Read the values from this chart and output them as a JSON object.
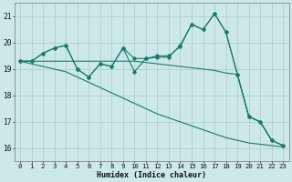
{
  "x": [
    0,
    1,
    2,
    3,
    4,
    5,
    6,
    7,
    8,
    9,
    10,
    11,
    12,
    13,
    14,
    15,
    16,
    17,
    18,
    19,
    20,
    21,
    22,
    23
  ],
  "line_main": [
    19.3,
    19.3,
    19.6,
    19.8,
    19.9,
    19.0,
    18.7,
    19.2,
    19.1,
    19.8,
    19.4,
    19.4,
    19.5,
    19.5,
    19.85,
    20.7,
    20.5,
    21.1,
    20.4,
    18.8,
    17.2,
    17.0,
    16.3,
    16.1
  ],
  "line_main2": [
    19.3,
    19.3,
    19.6,
    19.8,
    19.9,
    19.0,
    18.7,
    19.2,
    19.1,
    19.8,
    18.9,
    19.4,
    19.45,
    19.45,
    19.9,
    20.7,
    20.5,
    21.1,
    20.4,
    18.8,
    17.2,
    17.0,
    16.3,
    16.1
  ],
  "line_flat": [
    19.3,
    19.3,
    19.3,
    19.3,
    19.3,
    19.3,
    19.3,
    19.3,
    19.3,
    19.3,
    19.3,
    19.25,
    19.2,
    19.15,
    19.1,
    19.05,
    19.0,
    18.95,
    18.85,
    18.8,
    17.2,
    17.0,
    16.3,
    16.1
  ],
  "line_steep": [
    19.3,
    19.2,
    19.1,
    19.0,
    18.9,
    18.7,
    18.5,
    18.3,
    18.1,
    17.9,
    17.7,
    17.5,
    17.3,
    17.15,
    17.0,
    16.85,
    16.7,
    16.55,
    16.4,
    16.3,
    16.2,
    16.15,
    16.1,
    16.05
  ],
  "color": "#1a7a6e",
  "bg_color": "#cce8e8",
  "grid_color": "#aacccc",
  "xlabel": "Humidex (Indice chaleur)",
  "ylim": [
    15.5,
    21.5
  ],
  "xlim": [
    -0.5,
    23.5
  ],
  "yticks": [
    16,
    17,
    18,
    19,
    20,
    21
  ],
  "xticks": [
    0,
    1,
    2,
    3,
    4,
    5,
    6,
    7,
    8,
    9,
    10,
    11,
    12,
    13,
    14,
    15,
    16,
    17,
    18,
    19,
    20,
    21,
    22,
    23
  ],
  "marker": "D",
  "markersize": 1.8,
  "linewidth": 0.8,
  "xlabel_fontsize": 6.0,
  "tick_fontsize": 5.2
}
